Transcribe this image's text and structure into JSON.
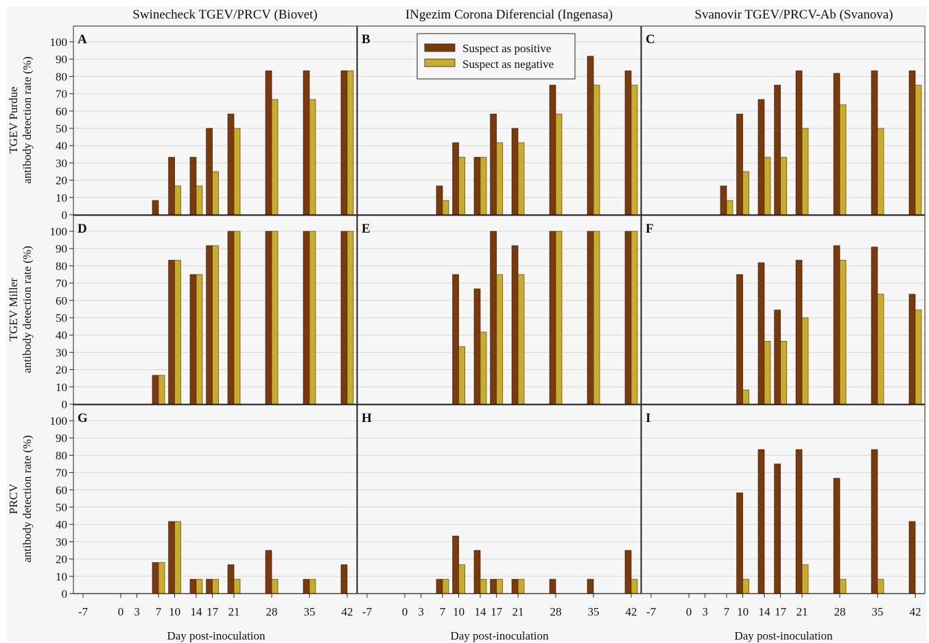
{
  "figure": {
    "column_titles": [
      "Swinecheck TGEV/PRCV (Biovet)",
      "INgezim Corona Diferencial (Ingenasa)",
      "Svanovir TGEV/PRCV-Ab (Svanova)"
    ],
    "row_labels": [
      [
        "TGEV Purdue",
        "antibody detection rate (%)"
      ],
      [
        "TGEV Miller",
        "antibody detection rate (%)"
      ],
      [
        "PRCV",
        "antibody detection rate (%)"
      ]
    ],
    "xlabel": "Day post-inoculation",
    "colors": {
      "positive": "#7b3a0c",
      "negative": "#c9ac2a",
      "panel_bg": "#f6f6f6",
      "grid": "#d7d7d7"
    }
  },
  "chart_data": {
    "type": "bar",
    "categories": [
      "-7",
      "0",
      "3",
      "7",
      "10",
      "14",
      "17",
      "21",
      "28",
      "35",
      "42"
    ],
    "x_days": [
      -7,
      0,
      3,
      7,
      10,
      14,
      17,
      21,
      28,
      35,
      42
    ],
    "ylim": [
      0,
      100
    ],
    "yticks": [
      "0",
      "10",
      "20",
      "30",
      "40",
      "50",
      "60",
      "70",
      "80",
      "90",
      "100"
    ],
    "legend": {
      "placement": "top-center (panel B)",
      "entries": [
        "Suspect as positive",
        "Suspect as negative"
      ]
    },
    "panels": [
      {
        "label": "A",
        "series": [
          {
            "name": "Suspect as positive",
            "values": [
              0,
              0,
              0,
              8.3,
              33.3,
              33.3,
              50,
              58.3,
              83.3,
              83.3,
              83.3
            ]
          },
          {
            "name": "Suspect as negative",
            "values": [
              0,
              0,
              0,
              0,
              16.7,
              16.7,
              25,
              50,
              66.7,
              66.7,
              83.3
            ]
          }
        ]
      },
      {
        "label": "B",
        "series": [
          {
            "name": "Suspect as positive",
            "values": [
              0,
              0,
              0,
              16.7,
              41.7,
              33.3,
              58.3,
              50,
              75,
              91.7,
              83.3
            ]
          },
          {
            "name": "Suspect as negative",
            "values": [
              0,
              0,
              0,
              8.3,
              33.3,
              33.3,
              41.7,
              41.7,
              58.3,
              75,
              75
            ]
          }
        ]
      },
      {
        "label": "C",
        "series": [
          {
            "name": "Suspect as positive",
            "values": [
              0,
              0,
              0,
              16.7,
              58.3,
              66.7,
              75,
              83.3,
              81.8,
              83.3,
              83.3
            ]
          },
          {
            "name": "Suspect as negative",
            "values": [
              0,
              0,
              0,
              8.3,
              25,
              33.3,
              33.3,
              50,
              63.6,
              50,
              75
            ]
          }
        ]
      },
      {
        "label": "D",
        "series": [
          {
            "name": "Suspect as positive",
            "values": [
              0,
              0,
              0,
              16.7,
              83.3,
              75,
              91.7,
              100,
              100,
              100,
              100
            ]
          },
          {
            "name": "Suspect as negative",
            "values": [
              0,
              0,
              0,
              16.7,
              83.3,
              75,
              91.7,
              100,
              100,
              100,
              100
            ]
          }
        ]
      },
      {
        "label": "E",
        "series": [
          {
            "name": "Suspect as positive",
            "values": [
              0,
              0,
              0,
              0,
              75,
              66.7,
              100,
              91.7,
              100,
              100,
              100
            ]
          },
          {
            "name": "Suspect as negative",
            "values": [
              0,
              0,
              0,
              0,
              33.3,
              41.7,
              75,
              75,
              100,
              100,
              100
            ]
          }
        ]
      },
      {
        "label": "F",
        "series": [
          {
            "name": "Suspect as positive",
            "values": [
              0,
              0,
              0,
              0,
              75,
              81.8,
              54.5,
              83.3,
              91.7,
              90.9,
              63.6
            ]
          },
          {
            "name": "Suspect as negative",
            "values": [
              0,
              0,
              0,
              0,
              8.3,
              36.4,
              36.4,
              50,
              83.3,
              63.6,
              54.5
            ]
          }
        ]
      },
      {
        "label": "G",
        "series": [
          {
            "name": "Suspect as positive",
            "values": [
              0,
              0,
              0,
              18,
              41.7,
              8.3,
              8.3,
              16.7,
              25,
              8.3,
              16.7
            ]
          },
          {
            "name": "Suspect as negative",
            "values": [
              0,
              0,
              0,
              18,
              41.7,
              8.3,
              8.3,
              8.3,
              8.3,
              8.3,
              0
            ]
          }
        ]
      },
      {
        "label": "H",
        "series": [
          {
            "name": "Suspect as positive",
            "values": [
              0,
              0,
              0,
              8.3,
              33.3,
              25,
              8.3,
              8.3,
              8.3,
              8.3,
              25
            ]
          },
          {
            "name": "Suspect as negative",
            "values": [
              0,
              0,
              0,
              8.3,
              16.7,
              8.3,
              8.3,
              8.3,
              0,
              0,
              8.3
            ]
          }
        ]
      },
      {
        "label": "I",
        "series": [
          {
            "name": "Suspect as positive",
            "values": [
              0,
              0,
              0,
              0,
              58.3,
              83.3,
              75,
              83.3,
              66.7,
              83.3,
              41.7
            ]
          },
          {
            "name": "Suspect as negative",
            "values": [
              0,
              0,
              0,
              0,
              8.3,
              0,
              0,
              16.7,
              8.3,
              8.3,
              0
            ]
          }
        ]
      }
    ]
  }
}
